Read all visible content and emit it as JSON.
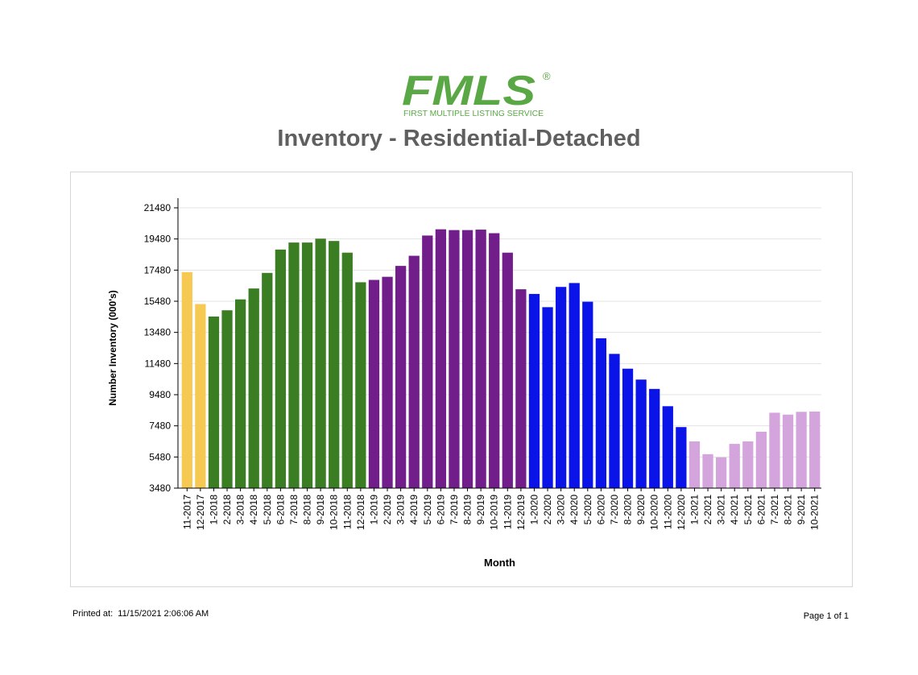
{
  "logo": {
    "text": "FMLS",
    "registered": "®",
    "tagline": "FIRST MULTIPLE LISTING SERVICE",
    "color": "#5aa845"
  },
  "title": "Inventory - Residential-Detached",
  "footer": {
    "printed_label": "Printed at:",
    "printed_value": "11/15/2021 2:06:06 AM",
    "page": "Page 1 of 1"
  },
  "chart_data": {
    "type": "bar",
    "title": "Inventory - Residential-Detached",
    "xlabel": "Month",
    "ylabel": "Number Inventory (000's)",
    "ylim": [
      3480,
      21480
    ],
    "yticks": [
      3480,
      5480,
      7480,
      9480,
      11480,
      13480,
      15480,
      17480,
      19480,
      21480
    ],
    "grid": true,
    "categories": [
      "11-2017",
      "12-2017",
      "1-2018",
      "2-2018",
      "3-2018",
      "4-2018",
      "5-2018",
      "6-2018",
      "7-2018",
      "8-2018",
      "9-2018",
      "10-2018",
      "11-2018",
      "12-2018",
      "1-2019",
      "2-2019",
      "3-2019",
      "4-2019",
      "5-2019",
      "6-2019",
      "7-2019",
      "8-2019",
      "9-2019",
      "10-2019",
      "11-2019",
      "12-2019",
      "1-2020",
      "2-2020",
      "3-2020",
      "4-2020",
      "5-2020",
      "6-2020",
      "7-2020",
      "8-2020",
      "9-2020",
      "10-2020",
      "11-2020",
      "12-2020",
      "1-2021",
      "2-2021",
      "3-2021",
      "4-2021",
      "5-2021",
      "6-2021",
      "7-2021",
      "8-2021",
      "9-2021",
      "10-2021"
    ],
    "values": [
      17350,
      15300,
      14500,
      14900,
      15600,
      16300,
      17300,
      18800,
      19250,
      19250,
      19500,
      19350,
      18600,
      16700,
      16850,
      17050,
      17750,
      18400,
      19700,
      20100,
      20050,
      20050,
      20080,
      19850,
      18600,
      16250,
      15950,
      15100,
      16400,
      16650,
      15450,
      13100,
      12100,
      11150,
      10450,
      9850,
      8740,
      7400,
      6480,
      5660,
      5460,
      6320,
      6480,
      7100,
      8320,
      8200,
      8380,
      8400
    ],
    "bar_colors": [
      "#f6c952",
      "#f6c952",
      "#3b7d23",
      "#3b7d23",
      "#3b7d23",
      "#3b7d23",
      "#3b7d23",
      "#3b7d23",
      "#3b7d23",
      "#3b7d23",
      "#3b7d23",
      "#3b7d23",
      "#3b7d23",
      "#3b7d23",
      "#711e8a",
      "#711e8a",
      "#711e8a",
      "#711e8a",
      "#711e8a",
      "#711e8a",
      "#711e8a",
      "#711e8a",
      "#711e8a",
      "#711e8a",
      "#711e8a",
      "#711e8a",
      "#0a14e9",
      "#0a14e9",
      "#0a14e9",
      "#0a14e9",
      "#0a14e9",
      "#0a14e9",
      "#0a14e9",
      "#0a14e9",
      "#0a14e9",
      "#0a14e9",
      "#0a14e9",
      "#0a14e9",
      "#d4a4dc",
      "#d4a4dc",
      "#d4a4dc",
      "#d4a4dc",
      "#d4a4dc",
      "#d4a4dc",
      "#d4a4dc",
      "#d4a4dc",
      "#d4a4dc",
      "#d4a4dc"
    ]
  }
}
